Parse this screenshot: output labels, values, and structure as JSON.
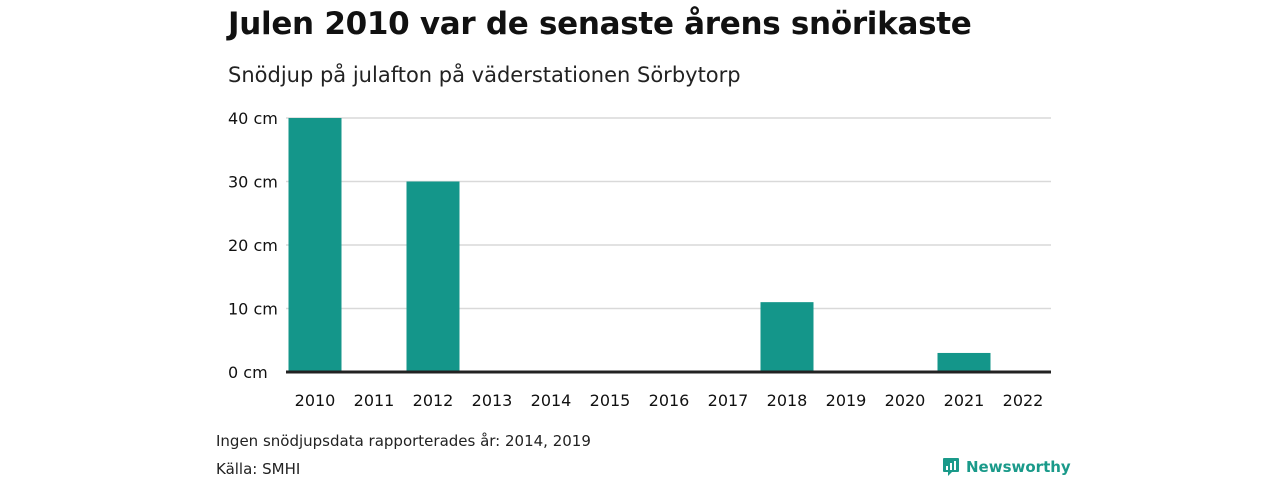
{
  "title": "Julen 2010 var de senaste årens snörikaste",
  "subtitle": "Snödjup på julafton på väderstationen Sörbytorp",
  "note": "Ingen snödjupsdata rapporterades år: 2014, 2019",
  "source": "Källa: SMHI",
  "brand": {
    "name": "Newsworthy",
    "icon": "newsworthy-logo-icon",
    "color": "#1a9a8a"
  },
  "chart_data": {
    "type": "bar",
    "categories": [
      "2010",
      "2011",
      "2012",
      "2013",
      "2014",
      "2015",
      "2016",
      "2017",
      "2018",
      "2019",
      "2020",
      "2021",
      "2022"
    ],
    "values": [
      40,
      0,
      30,
      0,
      null,
      0,
      0,
      0,
      11,
      null,
      0,
      3,
      0
    ],
    "yticks": [
      "0 cm",
      "10 cm",
      "20 cm",
      "30 cm",
      "40 cm"
    ],
    "ylim": [
      0,
      40
    ],
    "grid": true,
    "bar_color": "#14968a"
  }
}
